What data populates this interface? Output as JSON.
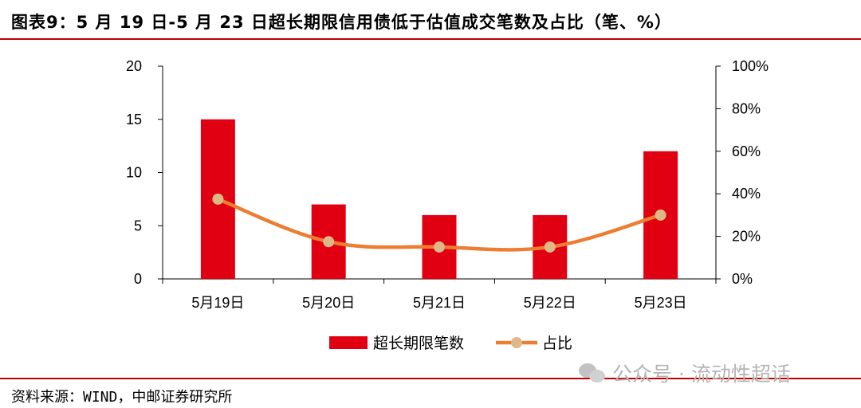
{
  "title": "图表9：5 月 19 日-5 月 23 日超长期限信用债低于估值成交笔数及占比（笔、%）",
  "source": "资料来源：WIND，中邮证券研究所",
  "watermark": "公众号 · 流动性超话",
  "watermark_icon": "wechat-icon",
  "chart_data": {
    "type": "bar",
    "categories": [
      "5月19日",
      "5月20日",
      "5月21日",
      "5月22日",
      "5月23日"
    ],
    "series": [
      {
        "name": "超长期限笔数",
        "type": "bar",
        "axis": "left",
        "color": "#e00012",
        "values": [
          15,
          7,
          6,
          6,
          12
        ]
      },
      {
        "name": "占比",
        "type": "line",
        "axis": "right",
        "color": "#ed7d31",
        "marker_color": "#deb887",
        "values": [
          37.5,
          17.5,
          15,
          15,
          30
        ]
      }
    ],
    "y_left": {
      "ylim": [
        0,
        20
      ],
      "ticks": [
        "0",
        "5",
        "10",
        "15",
        "20"
      ]
    },
    "y_right": {
      "ylim": [
        0,
        100
      ],
      "ticks": [
        "0%",
        "20%",
        "40%",
        "60%",
        "80%",
        "100%"
      ]
    },
    "legend_position": "bottom",
    "grid": false
  }
}
